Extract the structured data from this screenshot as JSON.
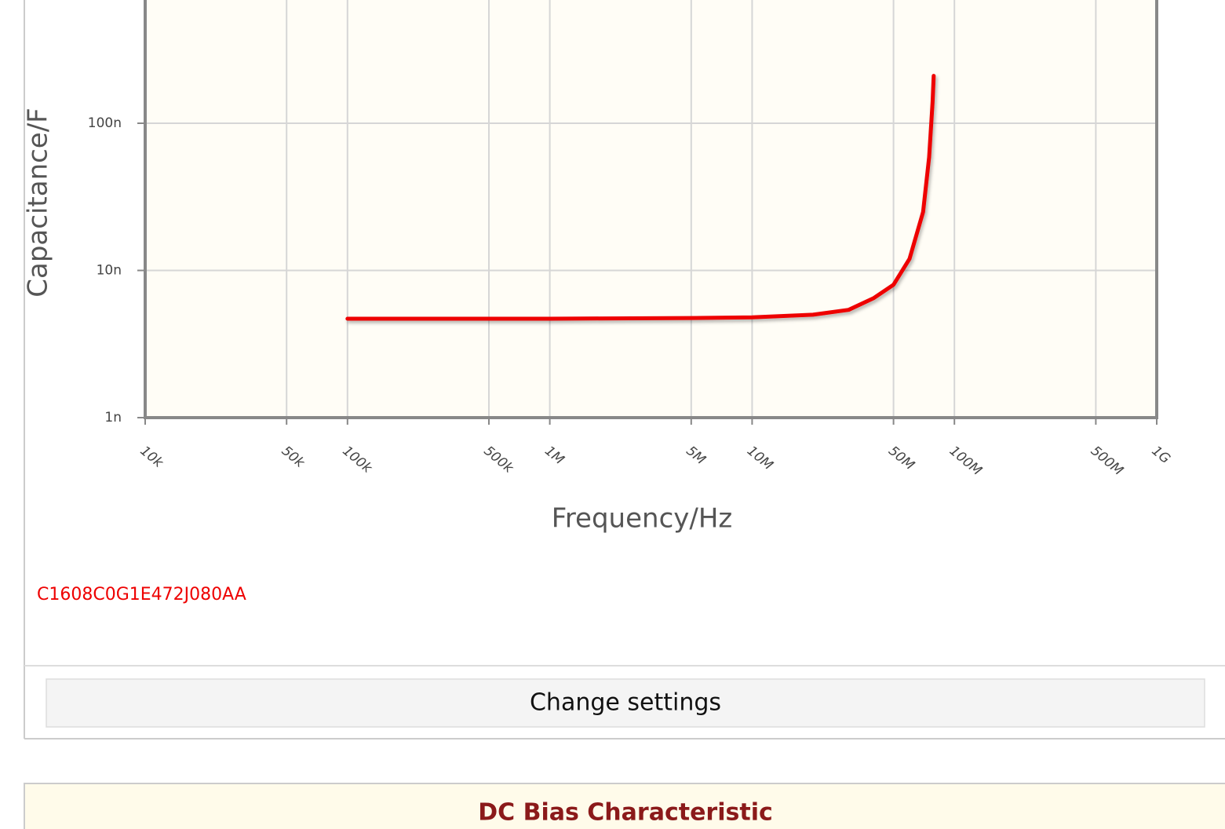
{
  "chart_data": {
    "type": "line",
    "y_label": "Capacitance/F",
    "x_label": "Frequency/Hz",
    "xlog": true,
    "ylog": true,
    "grid": true,
    "xlim": [
      10000,
      1000000000
    ],
    "ylim": [
      1e-09,
      1e-06
    ],
    "xticks": [
      {
        "value": 10000,
        "label": "10k"
      },
      {
        "value": 50000,
        "label": "50k"
      },
      {
        "value": 100000,
        "label": "100k"
      },
      {
        "value": 500000,
        "label": "500k"
      },
      {
        "value": 1000000,
        "label": "1M"
      },
      {
        "value": 5000000,
        "label": "5M"
      },
      {
        "value": 10000000,
        "label": "10M"
      },
      {
        "value": 50000000,
        "label": "50M"
      },
      {
        "value": 100000000,
        "label": "100M"
      },
      {
        "value": 500000000,
        "label": "500M"
      },
      {
        "value": 1000000000,
        "label": "1G"
      }
    ],
    "yticks": [
      {
        "value": 1e-09,
        "label": "1n"
      },
      {
        "value": 1e-08,
        "label": "10n"
      },
      {
        "value": 1e-07,
        "label": "100n"
      }
    ],
    "series": [
      {
        "name": "C1608C0G1E472J080AA",
        "color": "#ee0000",
        "x": [
          100000,
          1000000,
          5000000,
          10000000,
          20000000,
          30000000,
          40000000,
          50000000,
          60000000,
          70000000,
          75000000,
          78000000,
          79000000
        ],
        "values": [
          4.7e-09,
          4.7e-09,
          4.75e-09,
          4.8e-09,
          5e-09,
          5.4e-09,
          6.5e-09,
          8e-09,
          1.2e-08,
          2.5e-08,
          5.9e-08,
          1.4e-07,
          2.1e-07
        ]
      }
    ]
  },
  "button": "Change settings",
  "next_section": {
    "title": "DC Bias Characteristic"
  }
}
